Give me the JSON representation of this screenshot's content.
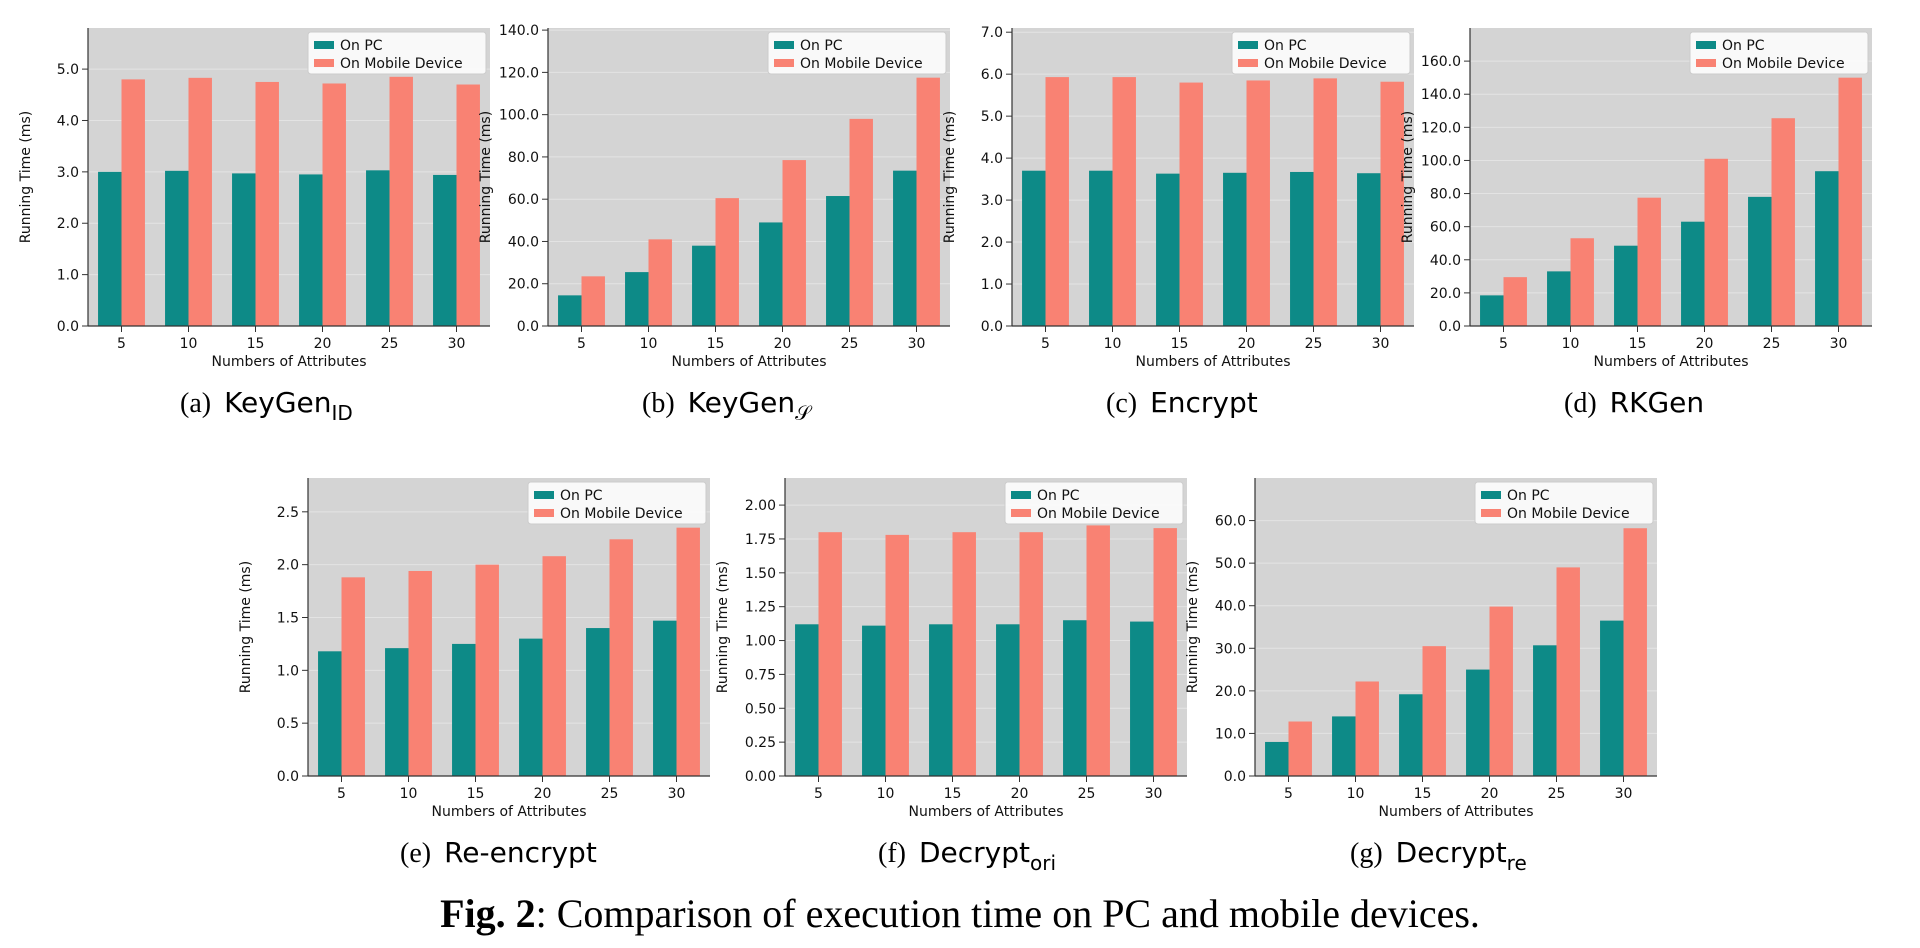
{
  "colors": {
    "pc": "#0d8a87",
    "mobile": "#f98273",
    "plot_bg": "#d4d4d4",
    "grid": "#e3e3e3"
  },
  "figure_caption": {
    "label": "Fig. 2",
    "text": ": Comparison of execution time on PC and mobile devices."
  },
  "chart_data": [
    {
      "type": "bar",
      "subcaption": {
        "letter": "(a)",
        "name": "KeyGen",
        "subscript": "ID"
      },
      "xlabel": "Numbers of Attributes",
      "ylabel": "Running Time (ms)",
      "categories": [
        "5",
        "10",
        "15",
        "20",
        "25",
        "30"
      ],
      "ylim": [
        0,
        5.8
      ],
      "yticks": [
        "0.0",
        "1.0",
        "2.0",
        "3.0",
        "4.0",
        "5.0"
      ],
      "legend": "top-right",
      "grid": true,
      "series": [
        {
          "name": "On PC",
          "values": [
            3.0,
            3.02,
            2.97,
            2.95,
            3.03,
            2.94
          ]
        },
        {
          "name": "On Mobile Device",
          "values": [
            4.8,
            4.83,
            4.75,
            4.72,
            4.85,
            4.7
          ]
        }
      ]
    },
    {
      "type": "bar",
      "subcaption": {
        "letter": "(b)",
        "name": "KeyGen",
        "subscript": "𝒮"
      },
      "xlabel": "Numbers of Attributes",
      "ylabel": "Running Time (ms)",
      "categories": [
        "5",
        "10",
        "15",
        "20",
        "25",
        "30"
      ],
      "ylim": [
        0,
        141
      ],
      "yticks": [
        "0.0",
        "20.0",
        "40.0",
        "60.0",
        "80.0",
        "100.0",
        "120.0",
        "140.0"
      ],
      "legend": "top-right",
      "grid": true,
      "series": [
        {
          "name": "On PC",
          "values": [
            14.5,
            25.5,
            38.0,
            49.0,
            61.5,
            73.5
          ]
        },
        {
          "name": "On Mobile Device",
          "values": [
            23.5,
            41.0,
            60.5,
            78.5,
            98.0,
            117.5
          ]
        }
      ]
    },
    {
      "type": "bar",
      "subcaption": {
        "letter": "(c)",
        "name": "Encrypt",
        "subscript": ""
      },
      "xlabel": "Numbers of Attributes",
      "ylabel": "Running Time (ms)",
      "categories": [
        "5",
        "10",
        "15",
        "20",
        "25",
        "30"
      ],
      "ylim": [
        0,
        7.1
      ],
      "yticks": [
        "0.0",
        "1.0",
        "2.0",
        "3.0",
        "4.0",
        "5.0",
        "6.0",
        "7.0"
      ],
      "legend": "top-right",
      "grid": true,
      "series": [
        {
          "name": "On PC",
          "values": [
            3.7,
            3.7,
            3.63,
            3.65,
            3.67,
            3.64
          ]
        },
        {
          "name": "On Mobile Device",
          "values": [
            5.93,
            5.93,
            5.8,
            5.85,
            5.9,
            5.82
          ]
        }
      ]
    },
    {
      "type": "bar",
      "subcaption": {
        "letter": "(d)",
        "name": "RKGen",
        "subscript": ""
      },
      "xlabel": "Numbers of Attributes",
      "ylabel": "Running Time (ms)",
      "categories": [
        "5",
        "10",
        "15",
        "20",
        "25",
        "30"
      ],
      "ylim": [
        0,
        180
      ],
      "yticks": [
        "0.0",
        "20.0",
        "40.0",
        "60.0",
        "80.0",
        "100.0",
        "120.0",
        "140.0",
        "160.0"
      ],
      "legend": "top-right",
      "grid": true,
      "series": [
        {
          "name": "On PC",
          "values": [
            18.5,
            33.0,
            48.5,
            63.0,
            78.0,
            93.5
          ]
        },
        {
          "name": "On Mobile Device",
          "values": [
            29.5,
            53.0,
            77.5,
            101.0,
            125.5,
            150.0
          ]
        }
      ]
    },
    {
      "type": "bar",
      "subcaption": {
        "letter": "(e)",
        "name": "Re-encrypt",
        "subscript": ""
      },
      "xlabel": "Numbers of Attributes",
      "ylabel": "Running Time (ms)",
      "categories": [
        "5",
        "10",
        "15",
        "20",
        "25",
        "30"
      ],
      "ylim": [
        0,
        2.82
      ],
      "yticks": [
        "0.0",
        "0.5",
        "1.0",
        "1.5",
        "2.0",
        "2.5"
      ],
      "legend": "top-right",
      "grid": true,
      "series": [
        {
          "name": "On PC",
          "values": [
            1.18,
            1.21,
            1.25,
            1.3,
            1.4,
            1.47
          ]
        },
        {
          "name": "On Mobile Device",
          "values": [
            1.88,
            1.94,
            2.0,
            2.08,
            2.24,
            2.35
          ]
        }
      ]
    },
    {
      "type": "bar",
      "subcaption": {
        "letter": "(f)",
        "name": "Decrypt",
        "subscript": "ori"
      },
      "xlabel": "Numbers of Attributes",
      "ylabel": "Running Time (ms)",
      "categories": [
        "5",
        "10",
        "15",
        "20",
        "25",
        "30"
      ],
      "ylim": [
        0,
        2.2
      ],
      "yticks": [
        "0.00",
        "0.25",
        "0.50",
        "0.75",
        "1.00",
        "1.25",
        "1.50",
        "1.75",
        "2.00"
      ],
      "legend": "top-right",
      "grid": true,
      "series": [
        {
          "name": "On PC",
          "values": [
            1.12,
            1.11,
            1.12,
            1.12,
            1.15,
            1.14
          ]
        },
        {
          "name": "On Mobile Device",
          "values": [
            1.8,
            1.78,
            1.8,
            1.8,
            1.85,
            1.83
          ]
        }
      ]
    },
    {
      "type": "bar",
      "subcaption": {
        "letter": "(g)",
        "name": "Decrypt",
        "subscript": "re"
      },
      "xlabel": "Numbers of Attributes",
      "ylabel": "Running Time (ms)",
      "categories": [
        "5",
        "10",
        "15",
        "20",
        "25",
        "30"
      ],
      "ylim": [
        0,
        70
      ],
      "yticks": [
        "0.0",
        "10.0",
        "20.0",
        "30.0",
        "40.0",
        "50.0",
        "60.0"
      ],
      "legend": "top-right",
      "grid": true,
      "series": [
        {
          "name": "On PC",
          "values": [
            8.0,
            14.0,
            19.2,
            25.0,
            30.7,
            36.5
          ]
        },
        {
          "name": "On Mobile Device",
          "values": [
            12.8,
            22.2,
            30.5,
            39.8,
            49.0,
            58.2
          ]
        }
      ]
    }
  ]
}
